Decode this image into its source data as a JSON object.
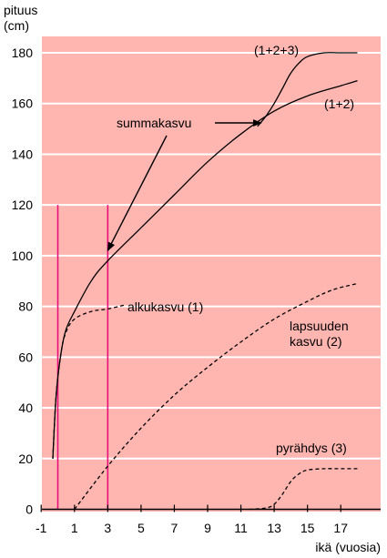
{
  "chart_data": {
    "type": "line",
    "ylabel": "pituus\n(cm)",
    "xlabel": "ikä (vuosia)",
    "xlim": [
      -1,
      19
    ],
    "ylim": [
      0,
      190
    ],
    "x_ticks": [
      -1,
      1,
      3,
      5,
      7,
      9,
      11,
      13,
      15,
      17
    ],
    "y_ticks": [
      0,
      20,
      40,
      60,
      80,
      100,
      120,
      140,
      160,
      180
    ],
    "grid": "horizontal",
    "background_color": "#ffb5b0",
    "grid_color": "#ffffff",
    "marker_color": "#e8107a",
    "vertical_markers": [
      {
        "x": 0,
        "y_top": 120
      },
      {
        "x": 3,
        "y_top": 120
      }
    ],
    "series": [
      {
        "name": "alkukasvu (1)",
        "style": "dashed",
        "points": [
          [
            -0.3,
            20
          ],
          [
            -0.1,
            45
          ],
          [
            0.2,
            62
          ],
          [
            0.5,
            70
          ],
          [
            1.0,
            75
          ],
          [
            2.0,
            78
          ],
          [
            3.0,
            79
          ],
          [
            4.0,
            80.5
          ]
        ]
      },
      {
        "name": "lapsuuden kasvu (2)",
        "style": "dashed",
        "points": [
          [
            1.0,
            0
          ],
          [
            3.0,
            17
          ],
          [
            5.0,
            32
          ],
          [
            7.0,
            45
          ],
          [
            9.0,
            56
          ],
          [
            11.0,
            66
          ],
          [
            13.0,
            75
          ],
          [
            15.0,
            82
          ],
          [
            16.5,
            86.5
          ],
          [
            18.0,
            89
          ]
        ]
      },
      {
        "name": "pyrähdys (3)",
        "style": "dashed",
        "points": [
          [
            11.5,
            0
          ],
          [
            12.5,
            0.5
          ],
          [
            13.0,
            2
          ],
          [
            13.5,
            6
          ],
          [
            14.0,
            11
          ],
          [
            14.5,
            14
          ],
          [
            15.0,
            15.5
          ],
          [
            16.0,
            16
          ],
          [
            17.0,
            16
          ],
          [
            18.0,
            16
          ]
        ]
      },
      {
        "name": "(1+2)",
        "style": "solid",
        "points": [
          [
            -0.3,
            20
          ],
          [
            -0.1,
            45
          ],
          [
            0.2,
            62
          ],
          [
            0.5,
            71
          ],
          [
            1.0,
            78
          ],
          [
            2.0,
            90
          ],
          [
            3.0,
            98
          ],
          [
            5.0,
            111
          ],
          [
            7.0,
            124
          ],
          [
            9.0,
            137
          ],
          [
            11.0,
            148
          ],
          [
            13.0,
            157
          ],
          [
            15.0,
            163
          ],
          [
            17.0,
            167
          ],
          [
            18.0,
            169
          ]
        ]
      },
      {
        "name": "(1+2+3)",
        "style": "solid",
        "points": [
          [
            12.0,
            151
          ],
          [
            12.5,
            155
          ],
          [
            13.0,
            160
          ],
          [
            13.5,
            166
          ],
          [
            14.0,
            172
          ],
          [
            14.5,
            176
          ],
          [
            15.0,
            178.5
          ],
          [
            16.0,
            180
          ],
          [
            17.0,
            180
          ],
          [
            18.0,
            180
          ]
        ]
      }
    ],
    "annotations": [
      {
        "text": "summakasvu",
        "arrows": [
          {
            "to": [
              3.0,
              102
            ]
          },
          {
            "to": [
              12.0,
              152
            ]
          }
        ]
      },
      {
        "text": "alkukasvu (1)"
      },
      {
        "text": "lapsuuden\nkasvu (2)"
      },
      {
        "text": "pyrähdys (3)"
      },
      {
        "text": "(1+2+3)"
      },
      {
        "text": "(1+2)"
      }
    ]
  }
}
